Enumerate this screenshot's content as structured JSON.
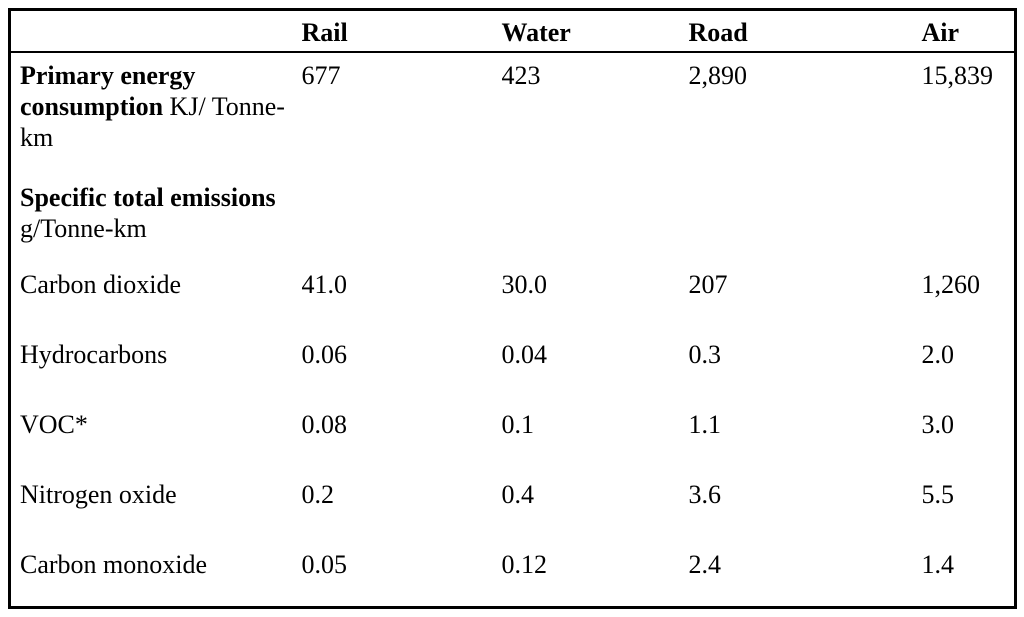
{
  "table": {
    "columns": [
      "",
      "Rail",
      "Water",
      "Road",
      "Air"
    ],
    "rows": [
      {
        "label_bold": "Primary energy consumption",
        "label_rest": "KJ/ Tonne-km",
        "values": [
          "677",
          "423",
          "2,890",
          "15,839"
        ]
      },
      {
        "label_bold": "Specific total emissions",
        "label_rest": "g/Tonne-km",
        "values": [
          "",
          "",
          "",
          ""
        ]
      },
      {
        "label_bold": "",
        "label_rest": "Carbon dioxide",
        "values": [
          "41.0",
          "30.0",
          "207",
          "1,260"
        ]
      },
      {
        "label_bold": "",
        "label_rest": "Hydrocarbons",
        "values": [
          "0.06",
          "0.04",
          "0.3",
          "2.0"
        ]
      },
      {
        "label_bold": "",
        "label_rest": "VOC*",
        "values": [
          "0.08",
          "0.1",
          "1.1",
          "3.0"
        ]
      },
      {
        "label_bold": "",
        "label_rest": "Nitrogen oxide",
        "values": [
          "0.2",
          "0.4",
          "3.6",
          "5.5"
        ]
      },
      {
        "label_bold": "",
        "label_rest": "Carbon monoxide",
        "values": [
          "0.05",
          "0.12",
          "2.4",
          "1.4"
        ]
      }
    ]
  },
  "chart_data": {
    "type": "table",
    "columns": [
      "",
      "Rail",
      "Water",
      "Road",
      "Air"
    ],
    "rows": [
      [
        "Primary energy consumption KJ/ Tonne-km",
        "677",
        "423",
        "2,890",
        "15,839"
      ],
      [
        "Specific total emissions g/Tonne-km",
        "",
        "",
        "",
        ""
      ],
      [
        "Carbon dioxide",
        "41.0",
        "30.0",
        "207",
        "1,260"
      ],
      [
        "Hydrocarbons",
        "0.06",
        "0.04",
        "0.3",
        "2.0"
      ],
      [
        "VOC*",
        "0.08",
        "0.1",
        "1.1",
        "3.0"
      ],
      [
        "Nitrogen oxide",
        "0.2",
        "0.4",
        "3.6",
        "5.5"
      ],
      [
        "Carbon monoxide",
        "0.05",
        "0.12",
        "2.4",
        "1.4"
      ]
    ]
  }
}
